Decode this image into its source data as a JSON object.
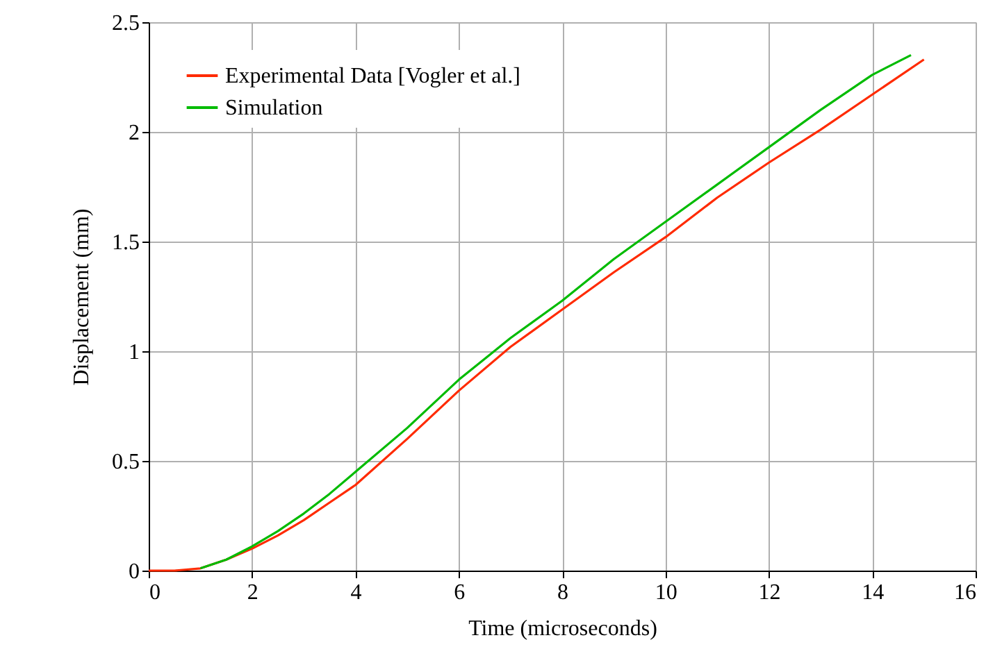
{
  "chart_data": {
    "type": "line",
    "xlabel": "Time (microseconds)",
    "ylabel": "Displacement (mm)",
    "xlim": [
      0,
      16
    ],
    "xticks": [
      0,
      2,
      4,
      6,
      8,
      10,
      12,
      14,
      16
    ],
    "ylim": [
      0,
      2.5
    ],
    "yticks": [
      0,
      0.5,
      1,
      1.5,
      2,
      2.5
    ],
    "grid": true,
    "legend": "top left",
    "line_style": "solid",
    "marker": "none",
    "series": [
      {
        "name": "Experimental Data [Vogler et al.]",
        "color": "#ff2a00",
        "x": [
          0,
          0.5,
          1,
          1.5,
          2,
          2.5,
          3,
          3.5,
          4,
          5,
          6,
          7,
          8,
          9,
          10,
          11,
          12,
          13,
          14,
          15
        ],
        "values": [
          0,
          0,
          0.01,
          0.05,
          0.1,
          0.16,
          0.23,
          0.31,
          0.39,
          0.6,
          0.82,
          1.02,
          1.19,
          1.36,
          1.52,
          1.7,
          1.86,
          2.01,
          2.17,
          2.33
        ]
      },
      {
        "name": "Simulation",
        "color": "#00bb00",
        "x": [
          1,
          1.5,
          2,
          2.5,
          3,
          3.5,
          4,
          5,
          6,
          7,
          8,
          9,
          10,
          11,
          12,
          13,
          14,
          14.75
        ],
        "values": [
          0.01,
          0.05,
          0.11,
          0.18,
          0.26,
          0.35,
          0.45,
          0.65,
          0.87,
          1.06,
          1.23,
          1.42,
          1.59,
          1.76,
          1.93,
          2.1,
          2.26,
          2.35
        ]
      }
    ]
  }
}
